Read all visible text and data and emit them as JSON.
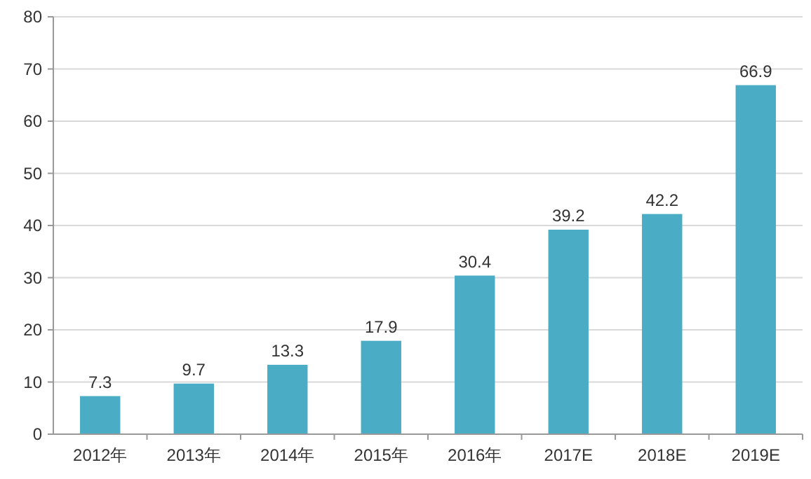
{
  "chart_data": {
    "type": "bar",
    "categories": [
      "2012年",
      "2013年",
      "2014年",
      "2015年",
      "2016年",
      "2017E",
      "2018E",
      "2019E"
    ],
    "values": [
      7.3,
      9.7,
      13.3,
      17.9,
      30.4,
      39.2,
      42.2,
      66.9
    ],
    "color": "#4bacc6",
    "ylim": [
      0,
      80
    ],
    "yticks": [
      0,
      10,
      20,
      30,
      40,
      50,
      60,
      70,
      80
    ],
    "grid": "y",
    "data_labels": true
  }
}
